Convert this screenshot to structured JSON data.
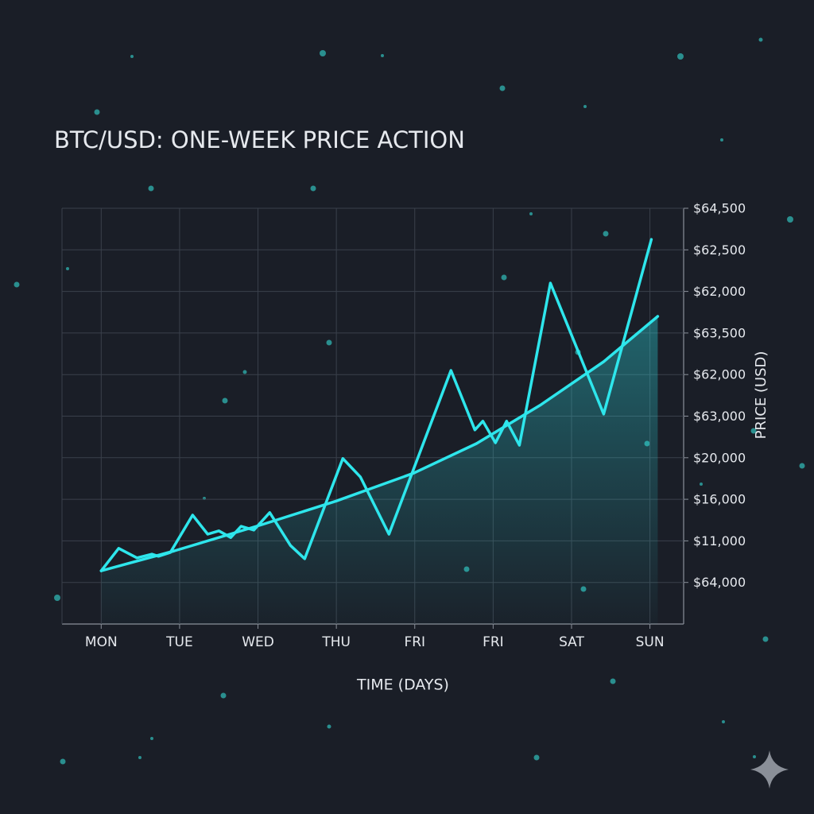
{
  "chart_data": {
    "type": "line",
    "title": "BTC/USD: ONE-WEEK PRICE ACTION",
    "x_label": "TIME (DAYS)",
    "y_label": "PRICE (USD)",
    "xlim": [
      -0.5,
      7.43
    ],
    "xticks": [
      {
        "value": 0,
        "label": "MON"
      },
      {
        "value": 1,
        "label": "TUE"
      },
      {
        "value": 2,
        "label": "WED"
      },
      {
        "value": 3,
        "label": "THU"
      },
      {
        "value": 4,
        "label": "FRI"
      },
      {
        "value": 5,
        "label": "FRI"
      },
      {
        "value": 6,
        "label": "SAT"
      },
      {
        "value": 7,
        "label": "SUN"
      }
    ],
    "ylim": [
      0,
      10
    ],
    "yticks": [
      {
        "value": 10,
        "label": "$64,500"
      },
      {
        "value": 9,
        "label": "$62,500"
      },
      {
        "value": 8,
        "label": "$62,000"
      },
      {
        "value": 7,
        "label": "$63,500"
      },
      {
        "value": 6,
        "label": "$62,000"
      },
      {
        "value": 5,
        "label": "$63,000"
      },
      {
        "value": 4,
        "label": "$20,000"
      },
      {
        "value": 3,
        "label": "$16,000"
      },
      {
        "value": 2,
        "label": "$11,000"
      },
      {
        "value": 1,
        "label": "$64,000"
      }
    ],
    "grid": true,
    "series": [
      {
        "color": "#2ee6ec",
        "x": [
          0,
          0.223,
          0.456,
          0.649,
          0.73,
          0.882,
          1.166,
          1.359,
          1.501,
          1.653,
          1.785,
          1.947,
          2.15,
          2.414,
          2.596,
          3.083,
          3.306,
          3.671,
          4.462,
          4.767,
          4.868,
          5.03,
          5.172,
          5.335,
          5.73,
          6.41,
          7.018
        ],
        "values": [
          1.28,
          1.82,
          1.59,
          1.68,
          1.63,
          1.72,
          2.62,
          2.16,
          2.24,
          2.08,
          2.35,
          2.26,
          2.68,
          1.89,
          1.57,
          3.98,
          3.54,
          2.16,
          6.1,
          4.67,
          4.88,
          4.36,
          4.88,
          4.3,
          8.2,
          5.05,
          9.25
        ]
      },
      {
        "color": "#2ee6ec",
        "fill": true,
        "x": [
          0,
          0.933,
          2.049,
          3.002,
          3.986,
          4.787,
          5.598,
          6.41,
          7.099
        ],
        "values": [
          1.28,
          1.76,
          2.39,
          2.96,
          3.63,
          4.34,
          5.26,
          6.31,
          7.4
        ]
      }
    ]
  }
}
